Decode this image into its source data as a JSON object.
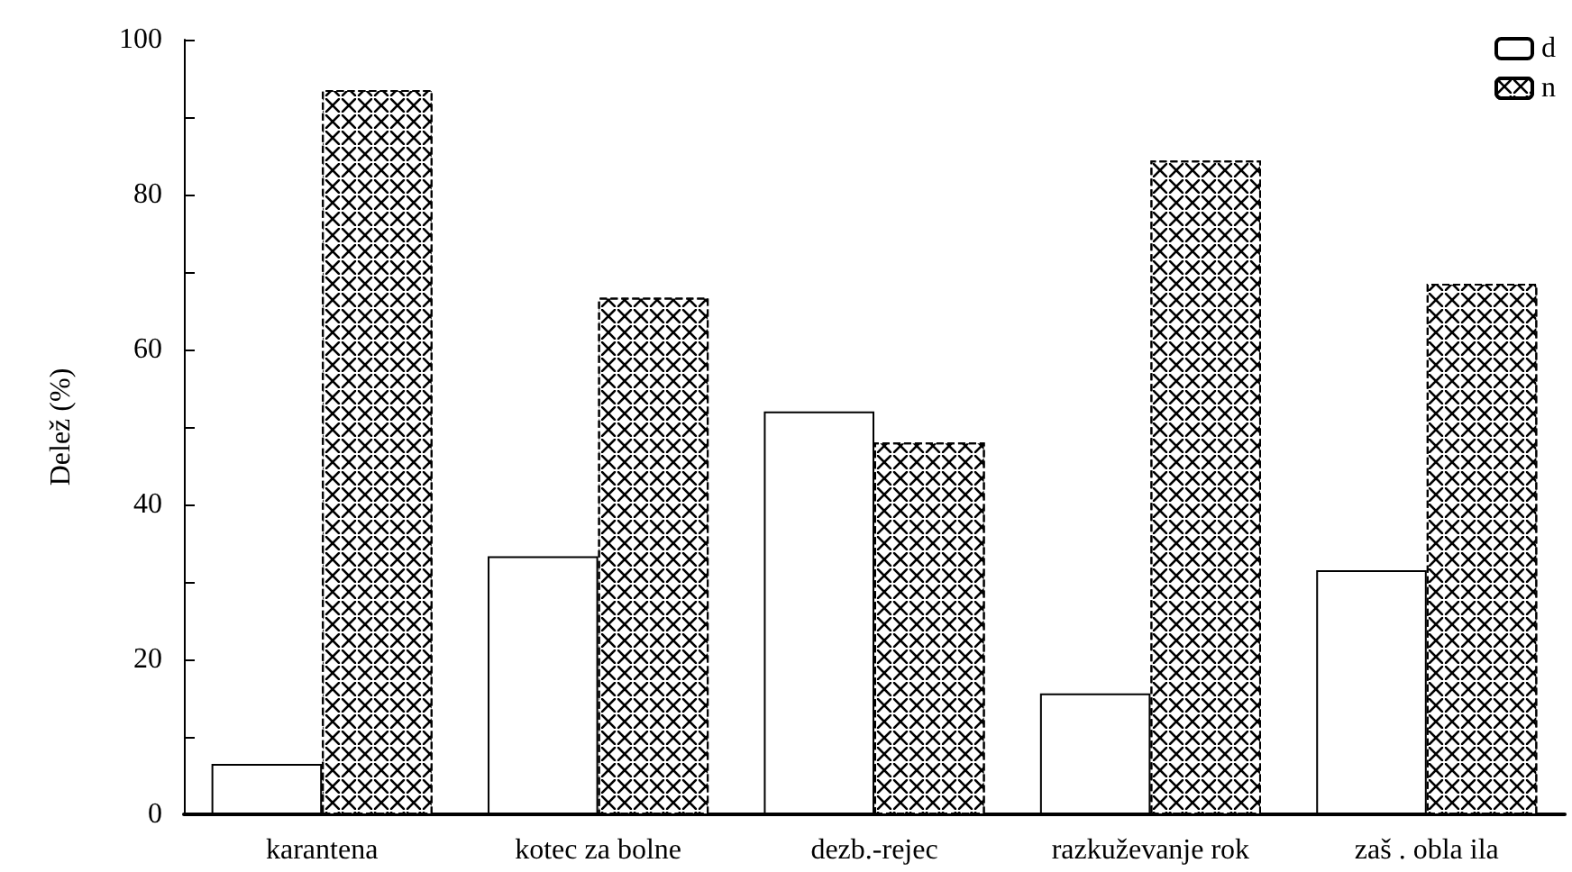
{
  "chart_data": {
    "type": "bar",
    "ylabel": "Delež (%)",
    "categories": [
      "karantena",
      "kotec za bolne",
      "dezb.-rejec",
      "razkuževanje rok",
      "zaš . obla ila"
    ],
    "series": [
      {
        "name": "d",
        "color": "#ffffff",
        "values": [
          6.5,
          33.3,
          52,
          15.6,
          31.5
        ]
      },
      {
        "name": "n",
        "color": "#ffffff",
        "line_style": "dashed",
        "values": [
          93.5,
          66.7,
          48,
          84.4,
          68.5
        ]
      }
    ],
    "ylim": [
      0,
      100
    ],
    "yticks": [
      0,
      {
        "value": 10,
        "label": null
      },
      20,
      {
        "value": 30,
        "label": null
      },
      40,
      {
        "value": 50,
        "label": null
      },
      60,
      {
        "value": 70,
        "label": null
      },
      80,
      {
        "value": 90,
        "label": null
      },
      100
    ],
    "grid": false,
    "legend": "top right"
  }
}
